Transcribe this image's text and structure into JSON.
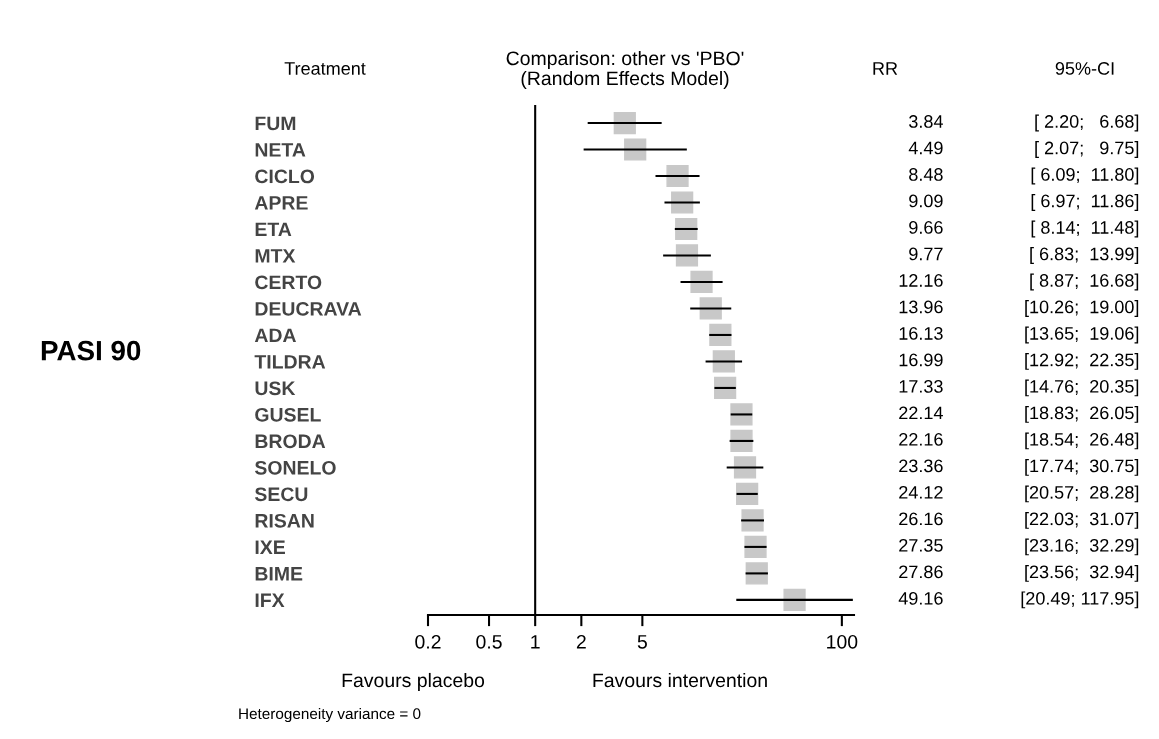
{
  "chart_data": {
    "type": "scatter",
    "title": "Comparison: other vs 'PBO'",
    "subtitle": "(Random Effects Model)",
    "ylabel": "PASI 90",
    "categories": [
      "FUM",
      "NETA",
      "CICLO",
      "APRE",
      "ETA",
      "MTX",
      "CERTO",
      "DEUCRAVA",
      "ADA",
      "TILDRA",
      "USK",
      "GUSEL",
      "BRODA",
      "SONELO",
      "SECU",
      "RISAN",
      "IXE",
      "BIME",
      "IFX"
    ],
    "orientation": "horizontal",
    "color": "#c8c8c8",
    "values": [
      3.84,
      4.49,
      8.48,
      9.09,
      9.66,
      9.77,
      12.16,
      13.96,
      16.13,
      16.99,
      17.33,
      22.14,
      22.16,
      23.36,
      24.12,
      26.16,
      27.35,
      27.86,
      49.16
    ],
    "errors": [
      [
        2.2,
        6.68
      ],
      [
        2.07,
        9.75
      ],
      [
        6.09,
        11.8
      ],
      [
        6.97,
        11.86
      ],
      [
        8.14,
        11.48
      ],
      [
        6.83,
        13.99
      ],
      [
        8.87,
        16.68
      ],
      [
        10.26,
        19.0
      ],
      [
        13.65,
        19.06
      ],
      [
        12.92,
        22.35
      ],
      [
        14.76,
        20.35
      ],
      [
        18.83,
        26.05
      ],
      [
        18.54,
        26.48
      ],
      [
        17.74,
        30.75
      ],
      [
        20.57,
        28.28
      ],
      [
        22.03,
        31.07
      ],
      [
        23.16,
        32.29
      ],
      [
        23.56,
        32.94
      ],
      [
        20.49,
        117.95
      ]
    ],
    "log": "x",
    "xlim": [
      0.2,
      120
    ],
    "xticks": [
      0.2,
      0.5,
      1,
      2,
      5,
      100
    ],
    "ref_lines": [
      {
        "axis": "x",
        "value": 1,
        "color": "#000000",
        "line_style": "solid"
      }
    ],
    "marker": "square",
    "data_labels": true,
    "grid": false,
    "legend": false,
    "annotations": [
      "Treatment",
      "RR",
      "95%-CI",
      "Favours placebo",
      "Favours intervention",
      "Heterogeneity variance = 0",
      "[ 2.20;   6.68]",
      "[ 2.07;   9.75]",
      "[ 6.09;  11.80]",
      "[ 6.97;  11.86]",
      "[ 8.14;  11.48]",
      "[ 6.83;  13.99]",
      "[ 8.87;  16.68]",
      "[10.26;  19.00]",
      "[13.65;  19.06]",
      "[12.92;  22.35]",
      "[14.76;  20.35]",
      "[18.83;  26.05]",
      "[18.54;  26.48]",
      "[17.74;  30.75]",
      "[20.57;  28.28]",
      "[22.03;  31.07]",
      "[23.16;  32.29]",
      "[23.56;  32.94]",
      "[20.49; 117.95]"
    ]
  }
}
